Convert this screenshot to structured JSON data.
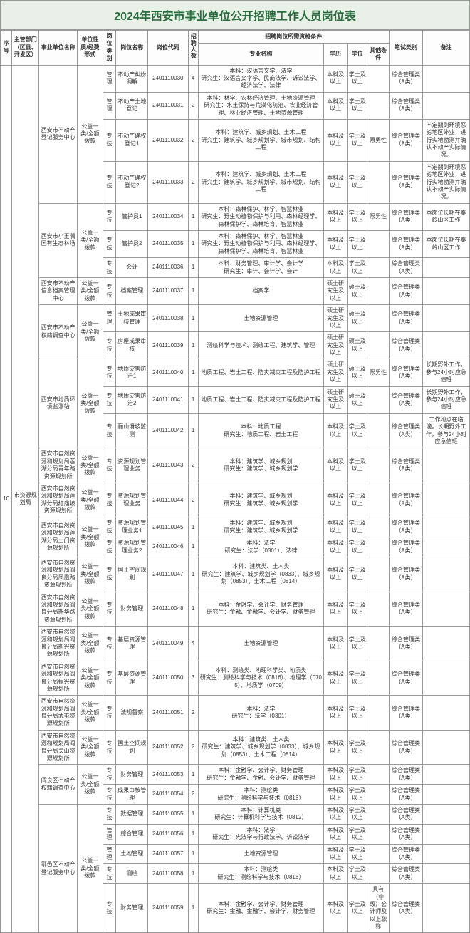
{
  "title": "2024年西安市事业单位公开招聘工作人员岗位表",
  "headers": {
    "seq": "序号",
    "dept": "主管部门（区县、开发区）",
    "unit": "事业单位名称",
    "nature": "单位性质/经费形式",
    "ptype": "岗位类别",
    "pname": "岗位名称",
    "pcode": "岗位代码",
    "count": "招聘人数",
    "qual": "招聘岗位所需资格条件",
    "major": "专业名称",
    "edu": "学历",
    "degree": "学位",
    "other": "其他条件",
    "exam": "笔试类别",
    "remark": "备注"
  },
  "seq": "10",
  "dept": "市资源规划局",
  "rows": [
    {
      "unit": "西安市不动产登记服务中心",
      "urs": 4,
      "nature": "公益一类/全额拨款",
      "nrs": 4,
      "ptype": "管理",
      "pname": "不动产纠纷调解",
      "pcode": "2401110030",
      "count": "4",
      "major": "本科：汉语言文学、法学\n研究生：汉语言文字学、民商法学、诉讼法学、经济法学、法律",
      "edu": "本科及以上",
      "degree": "学士及以上",
      "other": "",
      "exam": "综合管理类（A类）",
      "remark": ""
    },
    {
      "ptype": "管理",
      "pname": "不动产土地登记",
      "pcode": "2401110031",
      "count": "2",
      "major": "本科：林学、农林经济管理、土地资源管理\n研究生：水土保持与荒漠化防治、农业经济管理、林业经济管理、土地资源管理",
      "edu": "本科及以上",
      "degree": "学士及以上",
      "other": "",
      "exam": "综合管理类（A类）",
      "remark": ""
    },
    {
      "ptype": "专技",
      "pname": "不动产确权登记1",
      "pcode": "2401110032",
      "count": "2",
      "major": "本科：建筑学、城乡规划、土木工程\n研究生：建筑学、城乡规划学、城市规划、结构工程",
      "edu": "本科及以上",
      "degree": "学士及以上",
      "other": "限男性",
      "exam": "综合管理类（A类）",
      "remark": "不定期到环境恶劣地区外业，进行实地勘测并确认不动产实际情况。"
    },
    {
      "ptype": "专技",
      "pname": "不动产确权登记2",
      "pcode": "2401110033",
      "count": "2",
      "major": "本科：建筑学、城乡规划、土木工程\n研究生：建筑学、城乡规划学、城市规划、结构工程",
      "edu": "本科及以上",
      "degree": "学士及以上",
      "other": "",
      "exam": "综合管理类（A类）",
      "remark": "不定期到环境恶劣地区外业，进行实地勘测并确认不动产实际情况。"
    },
    {
      "unit": "西安市小王涧国有生态林场",
      "urs": 3,
      "nature": "公益一类/全额拨款",
      "nrs": 3,
      "ptype": "专技",
      "pname": "管护员1",
      "pcode": "2401110034",
      "count": "1",
      "major": "本科：森林保护、林学、智慧林业\n研究生：野生动植物保护与利用、森林经理学、森林保护学、森林培育、智慧林业",
      "edu": "本科及以上",
      "degree": "学士及以上",
      "other": "限男性",
      "exam": "综合管理类（A类）",
      "remark": "本岗位长期在秦岭山区工作"
    },
    {
      "ptype": "专技",
      "pname": "管护员2",
      "pcode": "2401110035",
      "count": "1",
      "major": "本科：森林保护、林学、智慧林业\n研究生：野生动植物保护与利用、森林经理学、森林保护学、森林培育、智慧林业",
      "edu": "本科及以上",
      "degree": "学士及以上",
      "other": "",
      "exam": "综合管理类（A类）",
      "remark": "本岗位长期在秦岭山区工作"
    },
    {
      "ptype": "专技",
      "pname": "会计",
      "pcode": "2401110036",
      "count": "1",
      "major": "本科：财务管理、审计学、会计学\n研究生：审计、会计学、会计",
      "edu": "本科及以上",
      "degree": "学士及以上",
      "other": "",
      "exam": "综合管理类（A类）",
      "remark": ""
    },
    {
      "unit": "西安市不动产信息档案管理中心",
      "urs": 1,
      "nature": "公益一类/全额拨款",
      "nrs": 1,
      "ptype": "专技",
      "pname": "档案管理",
      "pcode": "2401110037",
      "count": "1",
      "major": "档案学",
      "edu": "硕士研究生及以上",
      "degree": "硕士及以上",
      "other": "",
      "exam": "综合管理类（A类）",
      "remark": ""
    },
    {
      "unit": "西安市不动产权籍调查中心",
      "urs": 2,
      "nature": "公益一类/全额拨款",
      "nrs": 2,
      "ptype": "管理",
      "pname": "土地成果审核管理",
      "pcode": "2401110038",
      "count": "1",
      "major": "土地资源管理",
      "edu": "硕士研究生及以上",
      "degree": "硕士及以上",
      "other": "",
      "exam": "综合管理类（A类）",
      "remark": ""
    },
    {
      "ptype": "专技",
      "pname": "房屋成果审核",
      "pcode": "2401110039",
      "count": "1",
      "major": "测绘科学与技术、测绘工程、建筑学、管理",
      "edu": "硕士研究生及以上",
      "degree": "硕士及以上",
      "other": "",
      "exam": "综合管理类（A类）",
      "remark": ""
    },
    {
      "unit": "西安市地质环境监测站",
      "urs": 3,
      "nature": "公益一类/全额拨款",
      "nrs": 3,
      "ptype": "专技",
      "pname": "地质灾害防治1",
      "pcode": "2401110040",
      "count": "1",
      "major": "地质工程、岩土工程、防灾减灾工程及防护工程",
      "edu": "硕士研究生及以上",
      "degree": "硕士及以上",
      "other": "限男性",
      "exam": "综合管理类（A类）",
      "remark": "长期野外工作，参与24小时应急值班"
    },
    {
      "ptype": "专技",
      "pname": "地质灾害防治2",
      "pcode": "2401110041",
      "count": "1",
      "major": "地质工程、岩土工程、防灾减灾工程及防护工程",
      "edu": "硕士研究生及以上",
      "degree": "硕士及以上",
      "other": "",
      "exam": "综合管理类（A类）",
      "remark": "长期野外工作，参与24小时应急值班"
    },
    {
      "ptype": "专技",
      "pname": "骊山滑坡监测",
      "pcode": "2401110042",
      "count": "1",
      "major": "本科：地质工程\n研究生：地质工程、岩土工程",
      "edu": "本科及以上",
      "degree": "学士及以上",
      "other": "",
      "exam": "综合管理类（A类）",
      "remark": "工作地点在临潼。长期野外工作，参与24小时应急值班"
    },
    {
      "unit": "西安市自然资源和规划局莲湖分局青年路资源规划所",
      "urs": 1,
      "nature": "公益一类/全额拨款",
      "nrs": 1,
      "ptype": "专技",
      "pname": "资源规划管理业务",
      "pcode": "2401110043",
      "count": "2",
      "major": "本科：建筑学、城乡规划\n研究生：建筑学、城乡规划学",
      "edu": "本科及以上",
      "degree": "学士及以上",
      "other": "",
      "exam": "综合管理类（A类）",
      "remark": ""
    },
    {
      "unit": "西安市自然资源和规划局莲湖分局红庙坡资源规划所",
      "urs": 1,
      "nature": "公益一类/全额拨款",
      "nrs": 1,
      "ptype": "专技",
      "pname": "资源规划管理业务",
      "pcode": "2401110044",
      "count": "2",
      "major": "本科：建筑学、城乡规划\n研究生：建筑学、城乡规划学",
      "edu": "本科及以上",
      "degree": "学士及以上",
      "other": "",
      "exam": "综合管理类（A类）",
      "remark": ""
    },
    {
      "unit": "西安市自然资源和规划局莲湖分局土门资源规划所",
      "urs": 2,
      "nature": "公益一类/全额拨款",
      "nrs": 2,
      "ptype": "专技",
      "pname": "资源规划管理业务1",
      "pcode": "2401110045",
      "count": "1",
      "major": "本科：建筑学、城乡规划\n研究生：建筑学、城乡规划学",
      "edu": "本科及以上",
      "degree": "学士及以上",
      "other": "",
      "exam": "综合管理类（A类）",
      "remark": ""
    },
    {
      "ptype": "专技",
      "pname": "资源规划管理业务2",
      "pcode": "2401110046",
      "count": "1",
      "major": "本科：法学\n研究生：法学（0301）、法律",
      "edu": "本科及以上",
      "degree": "学士及以上",
      "other": "",
      "exam": "综合管理类（A类）",
      "remark": ""
    },
    {
      "unit": "西安市自然资源和规划局阎良分局凤凰路资源规划所",
      "urs": 1,
      "nature": "公益一类/全额拨款",
      "nrs": 1,
      "ptype": "专技",
      "pname": "国土空间规划",
      "pcode": "2401110047",
      "count": "1",
      "major": "本科：建筑类、土木类\n研究生：建筑学、城乡规划学（0833）、城乡规划（0853）、土木工程（0814）",
      "edu": "本科及以上",
      "degree": "学士及以上",
      "other": "",
      "exam": "综合管理类（A类）",
      "remark": ""
    },
    {
      "unit": "西安市自然资源和规划局阎良分局新华路资源规划所",
      "urs": 1,
      "nature": "公益一类/全额拨款",
      "nrs": 1,
      "ptype": "专技",
      "pname": "财务管理",
      "pcode": "2401110048",
      "count": "1",
      "major": "本科：金融学、会计学、财务管理\n研究生：金融、金融学、会计学、财务管理",
      "edu": "本科及以上",
      "degree": "学士及以上",
      "other": "",
      "exam": "综合管理类（A类）",
      "remark": ""
    },
    {
      "unit": "西安市自然资源和规划局阎良分局新兴资源规划所",
      "urs": 1,
      "nature": "公益一类/全额拨款",
      "nrs": 1,
      "ptype": "专技",
      "pname": "基层资源管理",
      "pcode": "2401110049",
      "count": "4",
      "major": "土地资源管理",
      "edu": "本科及以上",
      "degree": "学士及以上",
      "other": "",
      "exam": "综合管理类（A类）",
      "remark": ""
    },
    {
      "unit": "西安市自然资源和规划局阎良分局振兴资源规划所",
      "urs": 1,
      "nature": "公益一类/全额拨款",
      "nrs": 1,
      "ptype": "专技",
      "pname": "基层资源管理",
      "pcode": "2401110050",
      "count": "3",
      "major": "本科：测绘类、地理科学类、地质类\n研究生：测绘科学与技术（0816）、地理学（0705）、地质学（0709）",
      "edu": "本科及以上",
      "degree": "学士及以上",
      "other": "",
      "exam": "综合管理类（A类）",
      "remark": ""
    },
    {
      "unit": "西安市自然资源和规划局阎良分局武屯资源规划所",
      "urs": 1,
      "nature": "公益一类/全额拨款",
      "nrs": 1,
      "ptype": "专技",
      "pname": "法规督察",
      "pcode": "2401110051",
      "count": "2",
      "major": "本科：法学\n研究生：法学（0301）",
      "edu": "本科及以上",
      "degree": "学士及以上",
      "other": "",
      "exam": "综合管理类（A类）",
      "remark": ""
    },
    {
      "unit": "西安市自然资源和规划局阎良分局关山资源规划所",
      "urs": 1,
      "nature": "公益一类/全额拨款",
      "nrs": 1,
      "ptype": "专技",
      "pname": "国土空间规划",
      "pcode": "2401110052",
      "count": "2",
      "major": "本科：建筑类、土木类\n研究生：建筑学、城乡规划学（0833）、城乡规划（0853）、土木工程（0814）",
      "edu": "本科及以上",
      "degree": "学士及以上",
      "other": "",
      "exam": "综合管理类（A类）",
      "remark": ""
    },
    {
      "unit": "阎良区不动产权籍调查中心",
      "urs": 2,
      "nature": "公益一类/全额拨款",
      "nrs": 2,
      "ptype": "专技",
      "pname": "财务管理",
      "pcode": "2401110053",
      "count": "1",
      "major": "本科：金融学、会计学、财务管理\n研究生：金融学、金融、会计学、财务管理",
      "edu": "本科及以上",
      "degree": "学士及以上",
      "other": "",
      "exam": "综合管理类（A类）",
      "remark": ""
    },
    {
      "ptype": "专技",
      "pname": "成果审核管理",
      "pcode": "2401110054",
      "count": "2",
      "major": "本科：测绘类\n研究生：测绘科学与技术（0816）",
      "edu": "本科及以上",
      "degree": "学士及以上",
      "other": "",
      "exam": "综合管理类（A类）",
      "remark": ""
    },
    {
      "unit": "鄠邑区不动产登记服务中心",
      "urs": 5,
      "nature": "公益一类/全额拨款",
      "nrs": 5,
      "ptype": "专技",
      "pname": "数据管理",
      "pcode": "2401110055",
      "count": "1",
      "major": "本科：计算机类\n研究生：计算机科学与技术（0812）",
      "edu": "本科及以上",
      "degree": "学士及以上",
      "other": "",
      "exam": "综合管理类（A类）",
      "remark": ""
    },
    {
      "ptype": "管理",
      "pname": "综合管理",
      "pcode": "2401110056",
      "count": "1",
      "major": "本科：法学\n研究生：宪法学与行政法学、诉讼法学",
      "edu": "本科及以上",
      "degree": "学士及以上",
      "other": "",
      "exam": "综合管理类（A类）",
      "remark": ""
    },
    {
      "ptype": "管理",
      "pname": "土地管理",
      "pcode": "2401110057",
      "count": "1",
      "major": "土地资源管理",
      "edu": "本科及以上",
      "degree": "学士及以上",
      "other": "",
      "exam": "综合管理类（A类）",
      "remark": ""
    },
    {
      "ptype": "专技",
      "pname": "测绘",
      "pcode": "2401110058",
      "count": "1",
      "major": "本科：测绘类\n研究生：测绘科学与技术（0816）",
      "edu": "本科及以上",
      "degree": "学士及以上",
      "other": "",
      "exam": "综合管理类（A类）",
      "remark": ""
    },
    {
      "ptype": "专技",
      "pname": "财务管理",
      "pcode": "2401110059",
      "count": "1",
      "major": "本科：金融学、会计学、财务管理\n研究生：金融、金融学、会计学、财务管理",
      "edu": "本科及以上",
      "degree": "学士及以上",
      "other": "具有（中级）会计师及以上职称",
      "exam": "综合管理类（A类）",
      "remark": ""
    }
  ]
}
